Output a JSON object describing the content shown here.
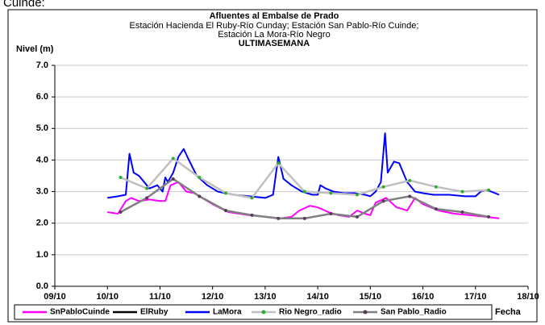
{
  "caption": "Cuinde:",
  "chart_data": {
    "type": "line",
    "title": "Afluentes al Embalse de Prado",
    "subtitle": [
      "Estación Hacienda El Ruby-Río Cunday; Estación San Pablo-Río Cuinde;",
      "Estación La Mora-Río Negro"
    ],
    "period": "ULTIMASEMANA",
    "y_label": "Nivel (m)",
    "x_label": "Fecha",
    "xlim": [
      9,
      18
    ],
    "xticks": [
      {
        "value": 9,
        "label": "09/10"
      },
      {
        "value": 10,
        "label": "10/10"
      },
      {
        "value": 11,
        "label": "11/10"
      },
      {
        "value": 12,
        "label": "12/10"
      },
      {
        "value": 13,
        "label": "13/10"
      },
      {
        "value": 14,
        "label": "14/10"
      },
      {
        "value": 15,
        "label": "15/10"
      },
      {
        "value": 16,
        "label": "16/10"
      },
      {
        "value": 17,
        "label": "17/10"
      },
      {
        "value": 18,
        "label": "18/10"
      }
    ],
    "ylim": [
      0,
      7
    ],
    "yticks": [
      {
        "value": 0,
        "label": "0.0"
      },
      {
        "value": 1,
        "label": "1.0"
      },
      {
        "value": 2,
        "label": "2.0"
      },
      {
        "value": 3,
        "label": "3.0"
      },
      {
        "value": 4,
        "label": "4.0"
      },
      {
        "value": 5,
        "label": "5.0"
      },
      {
        "value": 6,
        "label": "6.0"
      },
      {
        "value": 7,
        "label": "7.0"
      }
    ],
    "grid": true,
    "legend": "bottom",
    "series": [
      {
        "name": "SnPabloCuinde",
        "color": "#ff00ff",
        "markers": false,
        "x": [
          10.0,
          10.2,
          10.35,
          10.45,
          10.6,
          10.8,
          11.0,
          11.1,
          11.2,
          11.35,
          11.5,
          11.65,
          11.8,
          12.0,
          12.3,
          12.7,
          13.0,
          13.3,
          13.5,
          13.65,
          13.85,
          14.0,
          14.2,
          14.4,
          14.6,
          14.75,
          14.9,
          15.0,
          15.1,
          15.3,
          15.5,
          15.7,
          15.85,
          16.0,
          16.3,
          16.6,
          16.9,
          17.2,
          17.45
        ],
        "values": [
          2.35,
          2.3,
          2.7,
          2.8,
          2.7,
          2.75,
          2.7,
          2.7,
          3.2,
          3.3,
          3.0,
          2.95,
          2.8,
          2.6,
          2.35,
          2.25,
          2.2,
          2.15,
          2.2,
          2.4,
          2.55,
          2.5,
          2.35,
          2.25,
          2.2,
          2.4,
          2.3,
          2.25,
          2.65,
          2.8,
          2.5,
          2.4,
          2.8,
          2.6,
          2.4,
          2.3,
          2.25,
          2.2,
          2.15
        ]
      },
      {
        "name": "ElRuby",
        "color": "#000000",
        "markers": false,
        "x": [],
        "values": []
      },
      {
        "name": "LaMora",
        "color": "#0000ff",
        "markers": false,
        "x": [
          10.0,
          10.2,
          10.35,
          10.42,
          10.5,
          10.6,
          10.8,
          10.95,
          11.05,
          11.1,
          11.15,
          11.25,
          11.35,
          11.45,
          11.55,
          11.7,
          11.9,
          12.1,
          12.4,
          12.7,
          13.0,
          13.15,
          13.25,
          13.35,
          13.5,
          13.7,
          13.9,
          14.0,
          14.05,
          14.15,
          14.3,
          14.5,
          14.7,
          14.9,
          15.0,
          15.1,
          15.2,
          15.28,
          15.33,
          15.45,
          15.55,
          15.7,
          15.85,
          16.0,
          16.2,
          16.5,
          16.8,
          17.0,
          17.1,
          17.2,
          17.3,
          17.45
        ],
        "values": [
          2.8,
          2.85,
          2.9,
          4.2,
          3.6,
          3.5,
          3.1,
          3.2,
          3.0,
          3.45,
          3.3,
          3.6,
          4.1,
          4.35,
          4.0,
          3.5,
          3.2,
          3.0,
          2.9,
          2.85,
          2.8,
          2.9,
          4.1,
          3.4,
          3.2,
          3.0,
          2.9,
          2.9,
          3.2,
          3.1,
          3.0,
          2.95,
          2.95,
          2.9,
          2.85,
          3.0,
          3.3,
          4.85,
          3.6,
          3.95,
          3.9,
          3.3,
          3.0,
          2.95,
          2.9,
          2.9,
          2.85,
          2.85,
          3.0,
          3.05,
          3.0,
          2.9
        ]
      },
      {
        "name": "Rio Negro_radio",
        "color": "#c0c0c0",
        "marker_color": "#33aa33",
        "markers": true,
        "x": [
          10.25,
          10.75,
          11.25,
          11.75,
          12.25,
          12.75,
          13.25,
          13.75,
          14.25,
          14.75,
          15.25,
          15.75,
          16.25,
          16.75,
          17.25
        ],
        "values": [
          3.45,
          3.1,
          4.05,
          3.45,
          2.95,
          2.8,
          3.9,
          3.0,
          2.95,
          2.9,
          3.15,
          3.35,
          3.15,
          3.0,
          3.05
        ]
      },
      {
        "name": "San Pablo_Radio",
        "color": "#808080",
        "marker_color": "#5a3a5a",
        "markers": true,
        "x": [
          10.25,
          10.75,
          11.25,
          11.75,
          12.25,
          12.75,
          13.25,
          13.75,
          14.25,
          14.75,
          15.25,
          15.75,
          16.25,
          16.75,
          17.25
        ],
        "values": [
          2.35,
          2.8,
          3.4,
          2.85,
          2.4,
          2.25,
          2.15,
          2.15,
          2.3,
          2.2,
          2.7,
          2.85,
          2.45,
          2.35,
          2.2
        ]
      }
    ]
  }
}
